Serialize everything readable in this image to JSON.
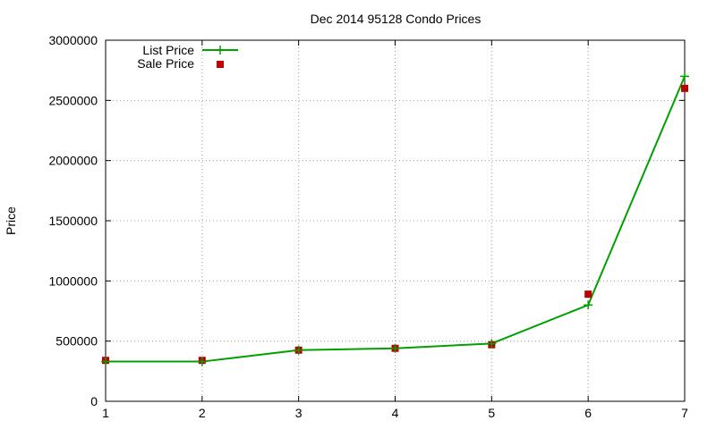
{
  "chart_data": {
    "type": "line",
    "title": "Dec 2014 95128 Condo Prices",
    "xlabel": "",
    "ylabel": "Price",
    "xlim": [
      1,
      7
    ],
    "ylim": [
      0,
      3000000
    ],
    "x_ticks": [
      1,
      2,
      3,
      4,
      5,
      6,
      7
    ],
    "y_ticks": [
      0,
      500000,
      1000000,
      1500000,
      2000000,
      2500000,
      3000000
    ],
    "grid": true,
    "legend_position": "top-left",
    "x": [
      1,
      2,
      3,
      4,
      5,
      6,
      7
    ],
    "series": [
      {
        "name": "List Price",
        "style": "line-with-plus-markers",
        "color": "#00a000",
        "values": [
          330000,
          330000,
          425000,
          440000,
          480000,
          800000,
          2700000
        ]
      },
      {
        "name": "Sale Price",
        "style": "square-markers",
        "color": "#c00000",
        "values": [
          340000,
          340000,
          425000,
          440000,
          470000,
          890000,
          2600000
        ]
      }
    ]
  }
}
